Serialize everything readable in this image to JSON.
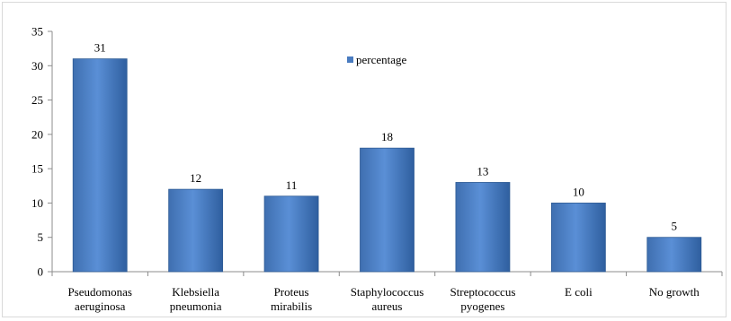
{
  "chart_data": {
    "type": "bar",
    "categories": [
      [
        "Pseudomonas",
        "aeruginosa"
      ],
      [
        "Klebsiella",
        "pneumonia"
      ],
      [
        "Proteus",
        "mirabilis"
      ],
      [
        "Staphylococcus",
        "aureus"
      ],
      [
        "Streptococcus",
        "pyogenes"
      ],
      [
        "E coli"
      ],
      [
        "No growth"
      ]
    ],
    "series": [
      {
        "name": "percentage",
        "values": [
          31,
          12,
          11,
          18,
          13,
          10,
          5
        ]
      }
    ],
    "ylim": [
      0,
      35
    ],
    "yticks": [
      0,
      5,
      10,
      15,
      20,
      25,
      30,
      35
    ],
    "xlabel": "",
    "ylabel": "",
    "legend_position": "top-center",
    "grid": false,
    "data_labels": true,
    "bar_color": "#4a7cc0",
    "bar_edge_color": "#2d5a94"
  }
}
